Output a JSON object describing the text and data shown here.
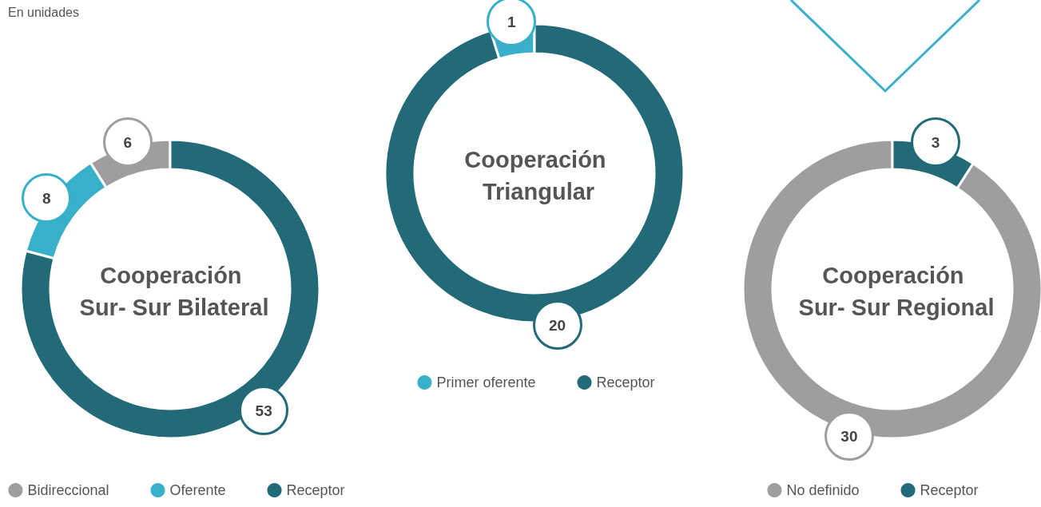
{
  "chart_data": [
    {
      "type": "donut",
      "title": "Cooperación Sur- Sur Bilateral",
      "subtitle": "En unidades",
      "categories": [
        "Bidireccional",
        "Oferente",
        "Receptor"
      ],
      "values": [
        6,
        8,
        53
      ],
      "colors": [
        "#9e9e9e",
        "#38b0c9",
        "#226a78"
      ],
      "data_labels": true,
      "legend": "bottom"
    },
    {
      "type": "donut",
      "title": "Cooperación Triangular",
      "categories": [
        "Primer oferente",
        "Receptor"
      ],
      "values": [
        1,
        20
      ],
      "colors": [
        "#38b0c9",
        "#226a78"
      ],
      "data_labels": true,
      "legend": "bottom"
    },
    {
      "type": "donut",
      "title": "Cooperación Sur- Sur Regional",
      "categories": [
        "No definido",
        "Receptor"
      ],
      "values": [
        30,
        3
      ],
      "colors": [
        "#9e9e9e",
        "#226a78"
      ],
      "data_labels": true,
      "legend": "bottom"
    }
  ]
}
